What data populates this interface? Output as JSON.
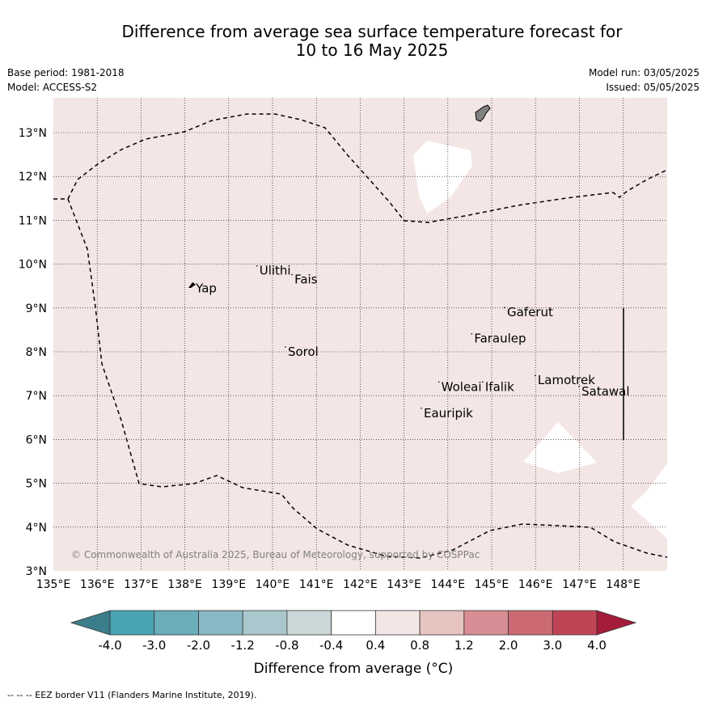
{
  "header": {
    "title_line1": "Difference from average sea surface temperature forecast for",
    "title_line2": "10 to 16 May 2025",
    "base_period": "Base period: 1981-2018",
    "model": "Model: ACCESS-S2",
    "model_run": "Model run: 03/05/2025",
    "issued": "Issued: 05/05/2025"
  },
  "map": {
    "lon_ticks": [
      "135°E",
      "136°E",
      "137°E",
      "138°E",
      "139°E",
      "140°E",
      "141°E",
      "142°E",
      "143°E",
      "144°E",
      "145°E",
      "146°E",
      "147°E",
      "148°E"
    ],
    "lat_ticks": [
      "3°N",
      "4°N",
      "5°N",
      "6°N",
      "7°N",
      "8°N",
      "9°N",
      "10°N",
      "11°N",
      "12°N",
      "13°N"
    ],
    "fill_color": "#f3e6e5",
    "places": [
      {
        "name": "Yap",
        "lon": 138.25,
        "lat": 9.45
      },
      {
        "name": "Ulithi",
        "lon": 139.7,
        "lat": 9.85
      },
      {
        "name": "Fais",
        "lon": 140.5,
        "lat": 9.65
      },
      {
        "name": "Sorol",
        "lon": 140.35,
        "lat": 8.0
      },
      {
        "name": "Gaferut",
        "lon": 145.35,
        "lat": 8.9
      },
      {
        "name": "Faraulep",
        "lon": 144.6,
        "lat": 8.3
      },
      {
        "name": "Lamotrek",
        "lon": 146.05,
        "lat": 7.35
      },
      {
        "name": "Satawal",
        "lon": 147.05,
        "lat": 7.1
      },
      {
        "name": "Woleai",
        "lon": 143.85,
        "lat": 7.2
      },
      {
        "name": "Ifalik",
        "lon": 144.85,
        "lat": 7.2
      },
      {
        "name": "Eauripik",
        "lon": 143.45,
        "lat": 6.6
      }
    ],
    "copyright": "© Commonwealth of Australia 2025, Bureau of Meteorology, supported by COSPPac"
  },
  "colorbar": {
    "ticks": [
      "-4.0",
      "-3.0",
      "-2.0",
      "-1.2",
      "-0.8",
      "-0.4",
      "0.4",
      "0.8",
      "1.2",
      "2.0",
      "3.0",
      "4.0"
    ],
    "colors": [
      "#3b7d8a",
      "#49a3b3",
      "#6aadbb",
      "#88b8c3",
      "#a9c7cd",
      "#cad8d9",
      "#ffffff",
      "#f3e6e5",
      "#e8c4c1",
      "#d78d93",
      "#cc6a74",
      "#bf4556",
      "#a51c3a"
    ],
    "label": "Difference from average (°C)"
  },
  "footer": {
    "legend": "--  --  -- EEZ border V11 (Flanders Marine Institute, 2019)."
  }
}
